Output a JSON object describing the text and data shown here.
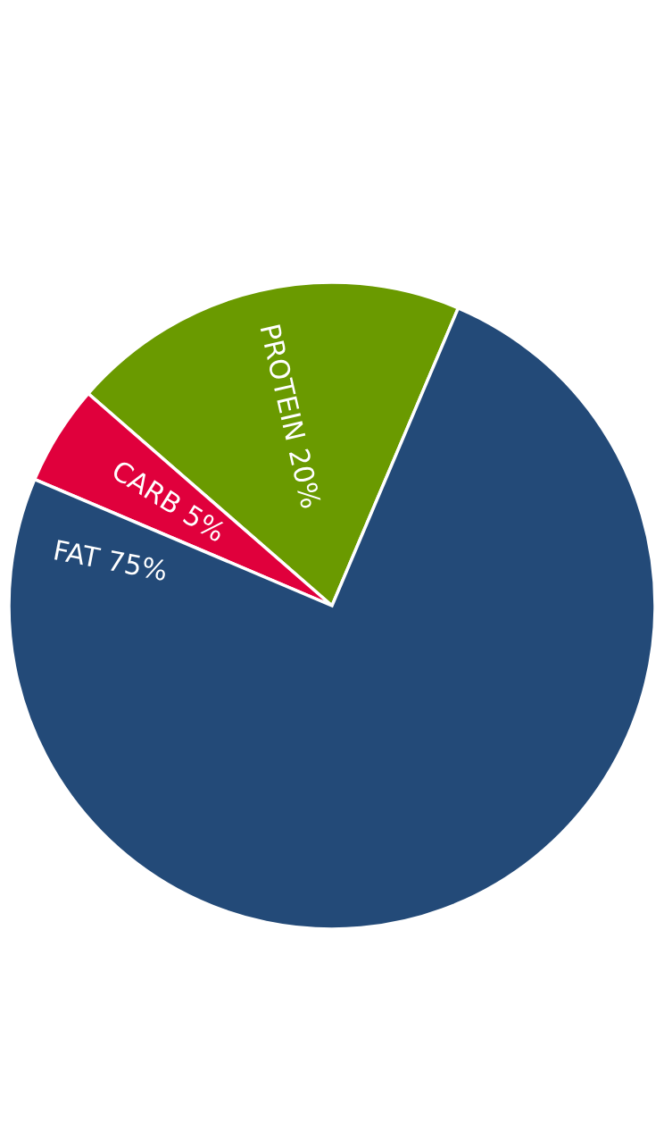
{
  "chart_data": {
    "type": "pie",
    "categories": [
      "PROTEIN",
      "CARB",
      "FAT"
    ],
    "values": [
      20,
      5,
      75
    ],
    "value_labels": [
      "20%",
      "5%",
      "75%"
    ],
    "colors": [
      "#6a9a00",
      "#e0003c",
      "#234a78"
    ]
  }
}
